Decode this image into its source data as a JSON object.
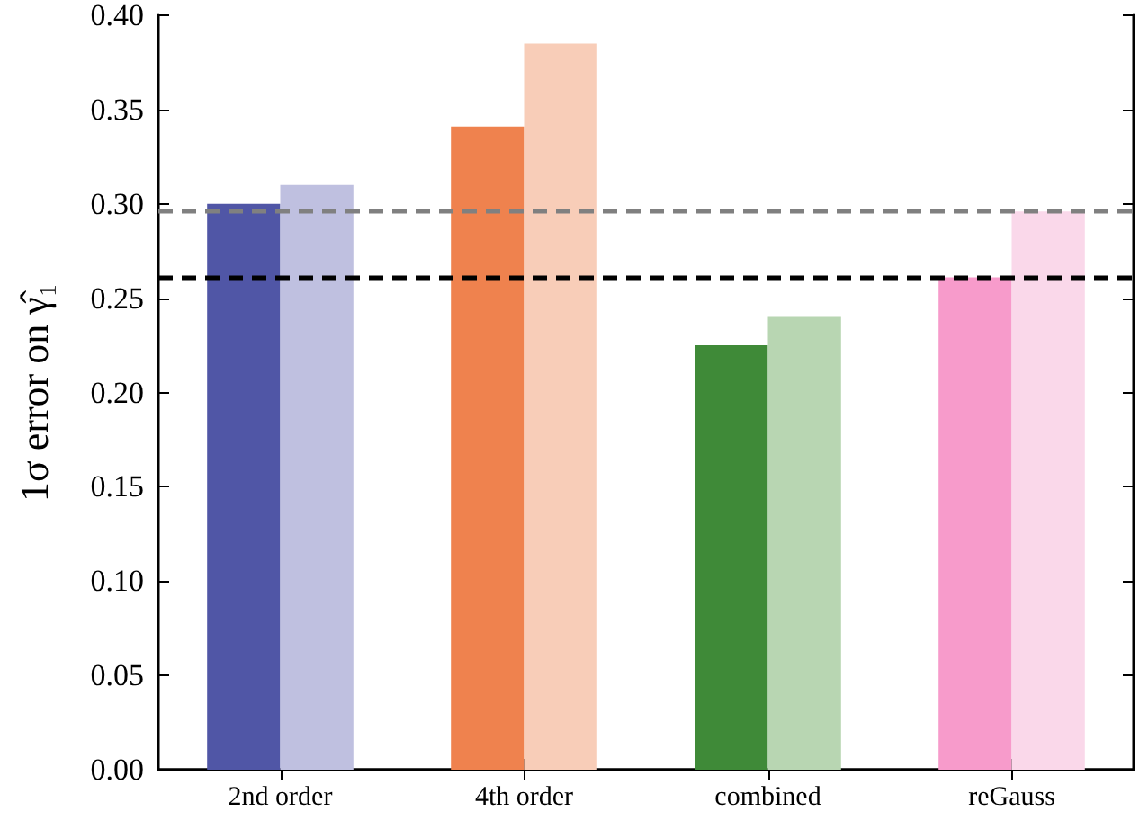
{
  "chart_data": {
    "type": "bar",
    "ylabel": "1σ error on γ̂₁",
    "categories": [
      "2nd order",
      "4th order",
      "combined",
      "reGauss"
    ],
    "series": [
      {
        "colors": [
          "#5056a6",
          "#ef824e",
          "#3f8a38",
          "#f79bcb"
        ],
        "values": [
          0.3,
          0.341,
          0.225,
          0.261
        ]
      },
      {
        "colors": [
          "#bfc0e0",
          "#f8cdb8",
          "#b8d6b2",
          "#fad8ea"
        ],
        "values": [
          0.31,
          0.385,
          0.24,
          0.296
        ]
      }
    ],
    "ylim": [
      0,
      0.4
    ],
    "yticks": [
      {
        "value": 0,
        "label": "0.00"
      },
      {
        "value": 0.05,
        "label": "0.05"
      },
      {
        "value": 0.1,
        "label": "0.10"
      },
      {
        "value": 0.15,
        "label": "0.15"
      },
      {
        "value": 0.2,
        "label": "0.20"
      },
      {
        "value": 0.25,
        "label": "0.25"
      },
      {
        "value": 0.3,
        "label": "0.30"
      },
      {
        "value": 0.35,
        "label": "0.35"
      },
      {
        "value": 0.4,
        "label": "0.40"
      }
    ],
    "ref_lines": [
      {
        "axis": "y",
        "value": 0.296,
        "color": "#808080",
        "line_style": "dashed"
      },
      {
        "axis": "y",
        "value": 0.261,
        "color": "#000000",
        "line_style": "dashed"
      }
    ],
    "grid": false
  }
}
